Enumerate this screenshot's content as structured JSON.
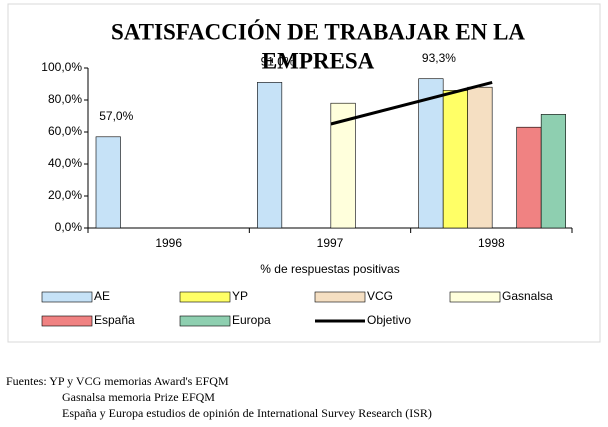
{
  "chart_data": {
    "type": "bar",
    "title_lines": [
      "SATISFACCIÓN DE TRABAJAR EN LA",
      "EMPRESA"
    ],
    "x_label": "% de respuestas positivas",
    "categories": [
      "1996",
      "1997",
      "1998"
    ],
    "ylim": [
      0,
      100
    ],
    "yticks": [
      {
        "value": 0,
        "label": "0,0%"
      },
      {
        "value": 20,
        "label": "20,0%"
      },
      {
        "value": 40,
        "label": "40,0%"
      },
      {
        "value": 60,
        "label": "60,0%"
      },
      {
        "value": 80,
        "label": "80,0%"
      },
      {
        "value": 100,
        "label": "100,0%"
      }
    ],
    "series": [
      {
        "name": "AE",
        "color": "#c6e2f7",
        "values": [
          57,
          91,
          93.3
        ],
        "value_labels": [
          "57,0%",
          "91,0%",
          "93,3%"
        ]
      },
      {
        "name": "YP",
        "color": "#ffff66",
        "values": [
          null,
          null,
          86
        ]
      },
      {
        "name": "VCG",
        "color": "#f5dfc2",
        "values": [
          null,
          null,
          88
        ]
      },
      {
        "name": "Gasnalsa",
        "color": "#ffffdc",
        "values": [
          null,
          78,
          null
        ]
      },
      {
        "name": "España",
        "color": "#f08282",
        "values": [
          null,
          null,
          63
        ]
      },
      {
        "name": "Europa",
        "color": "#8ecfb0",
        "values": [
          null,
          null,
          71
        ]
      },
      {
        "name": "Objetivo",
        "type": "line",
        "color": "#000000",
        "values": [
          null,
          65,
          91
        ]
      }
    ],
    "footnotes": [
      "Fuentes: YP y VCG memorias Award's EFQM",
      "Gasnalsa memoria Prize EFQM",
      "España y Europa estudios de opinión de International Survey Research (ISR)"
    ]
  }
}
